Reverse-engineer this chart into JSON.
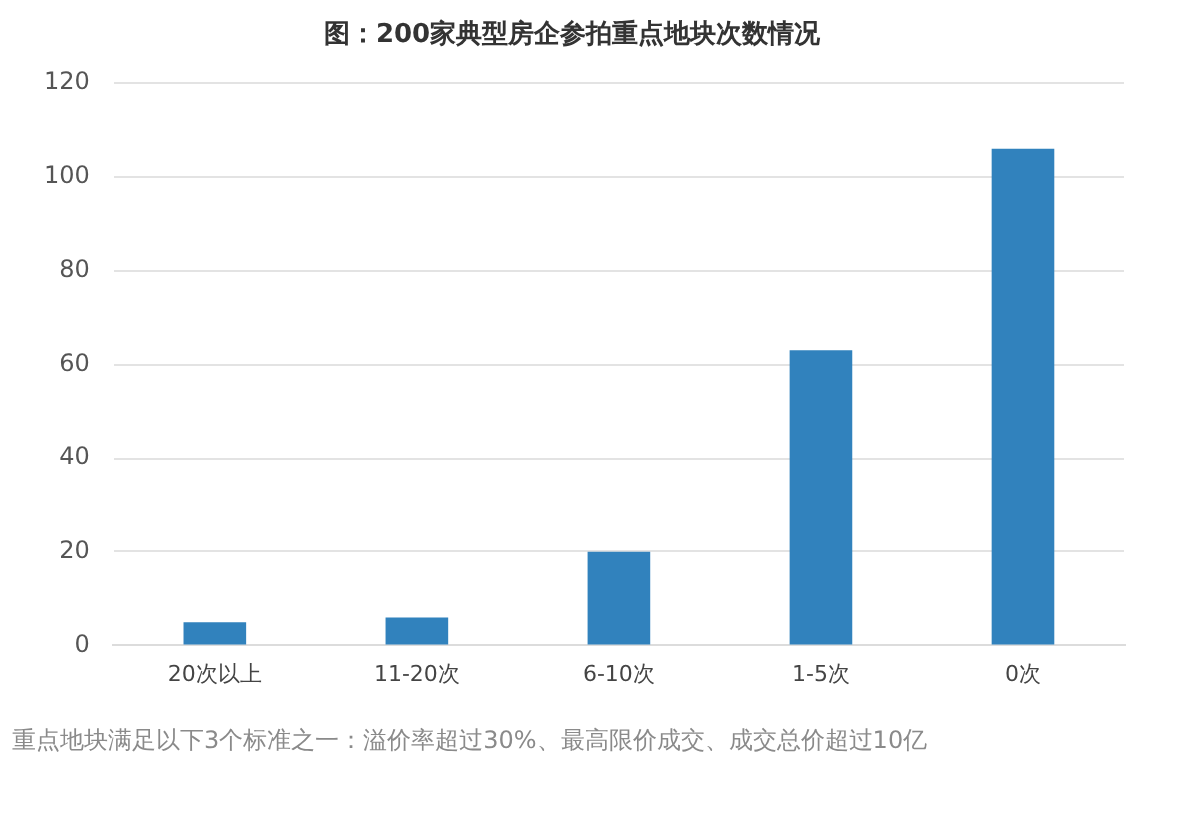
{
  "chart_data": {
    "type": "bar",
    "title": "图：200家典型房企参拍重点地块次数情况",
    "categories": [
      "20次以上",
      "11-20次",
      "6-10次",
      "1-5次",
      "0次"
    ],
    "values": [
      5,
      6,
      20,
      63,
      106
    ],
    "color": "#3182bd",
    "ylim": [
      0,
      120
    ],
    "yticks": [
      0,
      20,
      40,
      60,
      80,
      100,
      120
    ],
    "grid": "y",
    "legend": false,
    "annotations": [
      "重点地块满足以下3个标准之一：溢价率超过30%、最高限价成交、成交总价超过10亿"
    ]
  }
}
